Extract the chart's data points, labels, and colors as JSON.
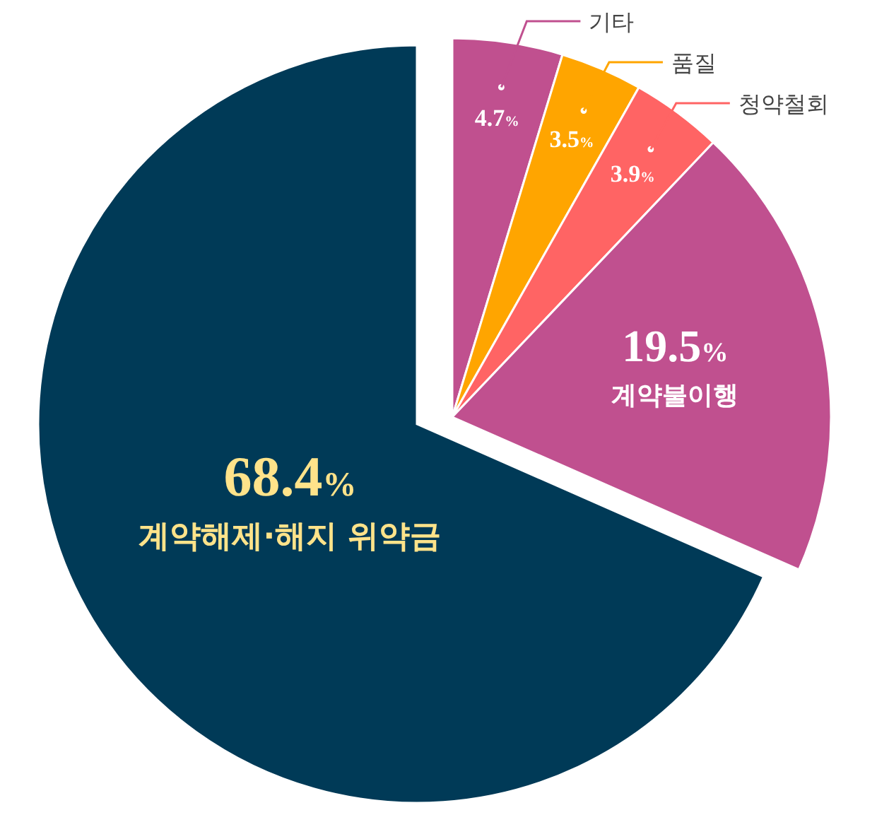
{
  "chart_data": {
    "type": "pie",
    "categories": [
      "기타",
      "품질",
      "청약철회",
      "계약불이행",
      "계약해제·해지 위약금"
    ],
    "values": [
      4.7,
      3.5,
      3.9,
      19.5,
      68.4
    ],
    "colors": [
      "#c0508f",
      "#ffa500",
      "#ff6464",
      "#c0508f",
      "#003a57"
    ],
    "value_labels": [
      "4.7%",
      "3.5%",
      "3.9%",
      "19.5%",
      "68.4%"
    ]
  }
}
